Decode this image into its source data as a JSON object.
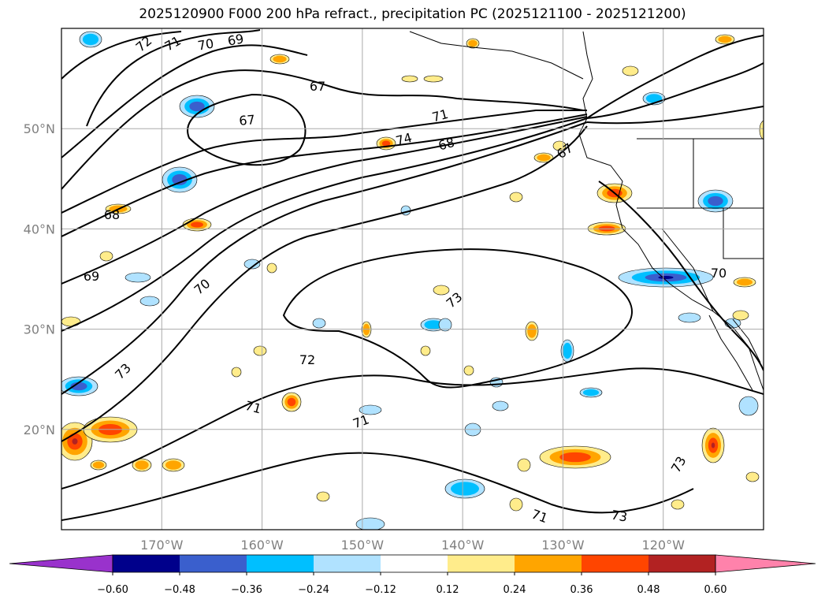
{
  "title": "2025120900 F000 200 hPa refract., precipitation PC (2025121100 - 2025121200)",
  "map": {
    "lon_range": [
      -180,
      -110
    ],
    "lat_range": [
      10,
      60
    ],
    "lat_ticks": [
      {
        "value": 20,
        "label": "20°N"
      },
      {
        "value": 30,
        "label": "30°N"
      },
      {
        "value": 40,
        "label": "40°N"
      },
      {
        "value": 50,
        "label": "50°N"
      }
    ],
    "lon_ticks": [
      {
        "value": -170,
        "label": "170°W"
      },
      {
        "value": -160,
        "label": "160°W"
      },
      {
        "value": -150,
        "label": "150°W"
      },
      {
        "value": -140,
        "label": "140°W"
      },
      {
        "value": -130,
        "label": "130°W"
      },
      {
        "value": -120,
        "label": "120°W"
      }
    ],
    "contour_labels": [
      "72",
      "71",
      "70",
      "69",
      "67",
      "67",
      "68",
      "69",
      "71",
      "74",
      "68",
      "67",
      "70",
      "73",
      "73",
      "70",
      "72",
      "71",
      "71",
      "71",
      "73",
      "73"
    ]
  },
  "colorbar": {
    "ticks": [
      "−0.60",
      "−0.48",
      "−0.36",
      "−0.24",
      "−0.12",
      "0.12",
      "0.24",
      "0.36",
      "0.48",
      "0.60"
    ],
    "colors": [
      "#9932cc",
      "#00008b",
      "#3a5fcd",
      "#00bfff",
      "#b0e2ff",
      "#ffffff",
      "#ffec8b",
      "#ffa500",
      "#ff4500",
      "#b22222",
      "#ff82ab"
    ]
  },
  "colors": {
    "neg_strong": "#00008b",
    "neg_mid": "#3a5fcd",
    "neg_light": "#00bfff",
    "neg_pale": "#b0e2ff",
    "pos_pale": "#ffec8b",
    "pos_mid": "#ffa500",
    "pos_strong": "#ff4500",
    "pos_dark": "#b22222",
    "contour": "#000000",
    "grid": "#aaaaaa"
  }
}
